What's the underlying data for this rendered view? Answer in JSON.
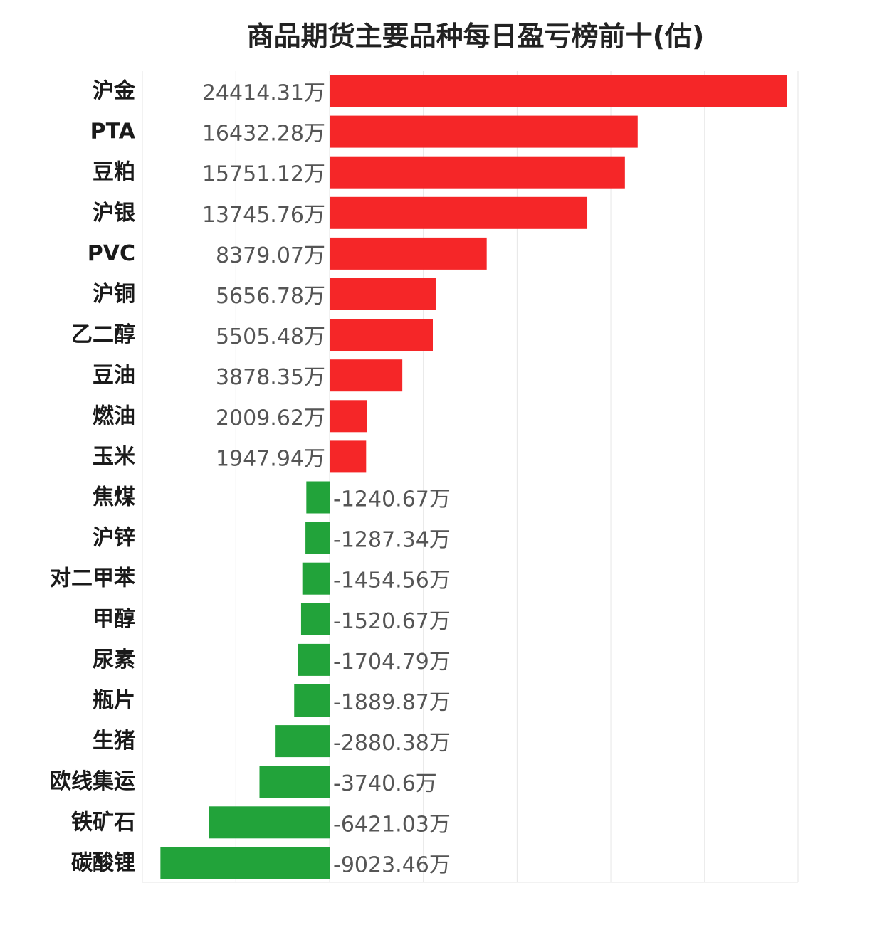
{
  "chart_data": {
    "type": "bar",
    "orientation": "horizontal",
    "title": "商品期货主要品种每日盈亏榜前十(估)",
    "unit": "万",
    "categories": [
      "沪金",
      "PTA",
      "豆粕",
      "沪银",
      "PVC",
      "沪铜",
      "乙二醇",
      "豆油",
      "燃油",
      "玉米",
      "焦煤",
      "沪锌",
      "对二甲苯",
      "甲醇",
      "尿素",
      "瓶片",
      "生猪",
      "欧线集运",
      "铁矿石",
      "碳酸锂"
    ],
    "values": [
      24414.31,
      16432.28,
      15751.12,
      13745.76,
      8379.07,
      5656.78,
      5505.48,
      3878.35,
      2009.62,
      1947.94,
      -1240.67,
      -1287.34,
      -1454.56,
      -1520.67,
      -1704.79,
      -1889.87,
      -2880.38,
      -3740.6,
      -6421.03,
      -9023.46
    ],
    "value_labels": [
      "24414.31万",
      "16432.28万",
      "15751.12万",
      "13745.76万",
      "8379.07万",
      "5656.78万",
      "5505.48万",
      "3878.35万",
      "2009.62万",
      "1947.94万",
      "-1240.67万",
      "-1287.34万",
      "-1454.56万",
      "-1520.67万",
      "-1704.79万",
      "-1889.87万",
      "-2880.38万",
      "-3740.6万",
      "-6421.03万",
      "-9023.46万"
    ],
    "xlim": [
      -10000,
      25000
    ],
    "grid": true,
    "legend": "none",
    "colors": {
      "positive": "#f52628",
      "negative": "#22a33a"
    }
  }
}
